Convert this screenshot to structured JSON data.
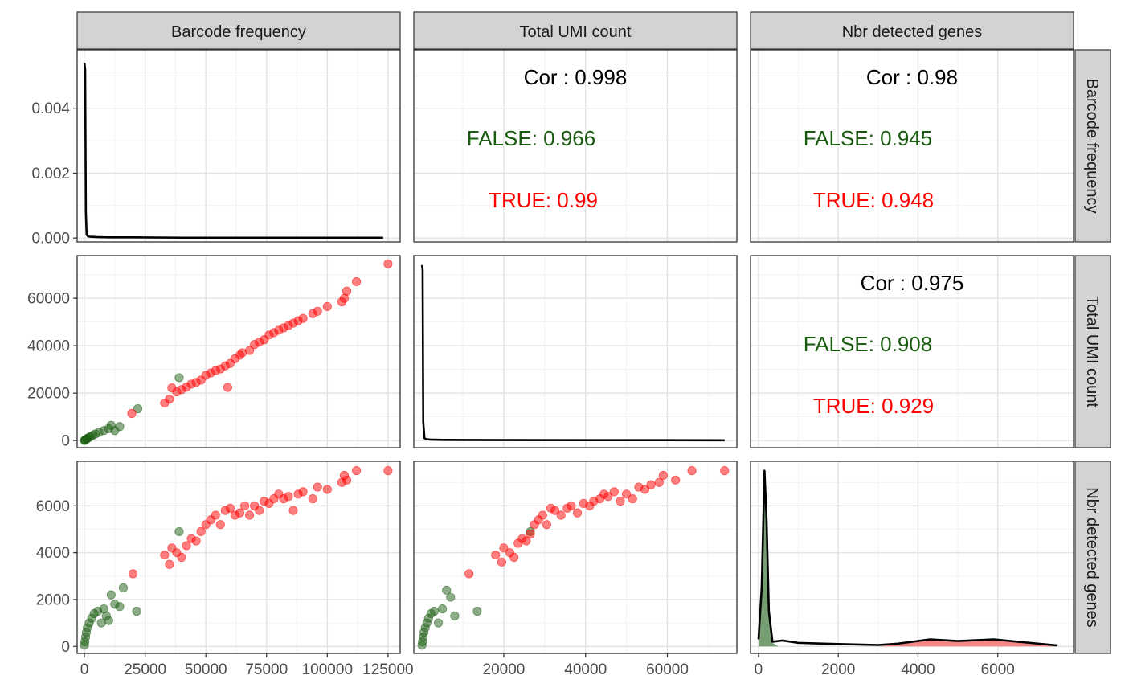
{
  "figure": {
    "variables": [
      "Barcode frequency",
      "Total UMI count",
      "Nbr detected genes"
    ],
    "colors": {
      "FALSE": "#1a5c10",
      "TRUE": "#ff0000",
      "overall": "#000000"
    }
  },
  "chart_data": {
    "type": "scatter",
    "kind": "pairs-plot matrix (3x3), lower panels scatter, diagonal density, upper panels correlation",
    "grid": true,
    "groups": [
      "FALSE",
      "TRUE"
    ],
    "axes": {
      "x": [
        {
          "ticks": [
            0,
            25000,
            50000,
            75000,
            100000,
            125000
          ],
          "tick_labels": [
            "0",
            "25000",
            "50000",
            "75000",
            "100000",
            "125000"
          ],
          "lim": [
            -3000,
            130000
          ]
        },
        {
          "ticks": [
            20000,
            40000,
            60000
          ],
          "tick_labels": [
            "20000",
            "40000",
            "60000"
          ],
          "lim": [
            -2000,
            77000
          ]
        },
        {
          "ticks": [
            0,
            2000,
            4000,
            6000
          ],
          "tick_labels": [
            "0",
            "2000",
            "4000",
            "6000"
          ],
          "lim": [
            -200,
            7900
          ]
        }
      ],
      "y": [
        {
          "ticks": [
            0,
            0.002,
            0.004
          ],
          "tick_labels": [
            "0.000",
            "0.002",
            "0.004"
          ],
          "lim": [
            -0.00012,
            0.0058
          ]
        },
        {
          "ticks": [
            0,
            20000,
            40000,
            60000
          ],
          "tick_labels": [
            "0",
            "20000",
            "40000",
            "60000"
          ],
          "lim": [
            -3000,
            78000
          ]
        },
        {
          "ticks": [
            0,
            2000,
            4000,
            6000
          ],
          "tick_labels": [
            "0",
            "2000",
            "4000",
            "6000"
          ],
          "lim": [
            -300,
            7900
          ]
        }
      ]
    },
    "correlations": [
      {
        "panel": "Total UMI count vs Barcode frequency",
        "row": 0,
        "col": 1,
        "overall": "Cor : 0.998",
        "FALSE": "FALSE: 0.966",
        "TRUE": "TRUE: 0.99"
      },
      {
        "panel": "Nbr detected genes vs Barcode frequency",
        "row": 0,
        "col": 2,
        "overall": "Cor : 0.98",
        "FALSE": "FALSE: 0.945",
        "TRUE": "TRUE: 0.948"
      },
      {
        "panel": "Nbr detected genes vs Total UMI count",
        "row": 1,
        "col": 2,
        "overall": "Cor : 0.975",
        "FALSE": "FALSE: 0.908",
        "TRUE": "TRUE: 0.929"
      }
    ],
    "densities": [
      {
        "row": 0,
        "col": 0,
        "x": [
          0,
          300,
          600,
          900,
          1500,
          2500,
          5000,
          10000,
          20000,
          40000,
          80000,
          123000
        ],
        "y": [
          0.0054,
          0.0052,
          0.0008,
          0.0001,
          5e-05,
          4e-05,
          3e-05,
          2e-05,
          2e-05,
          1e-05,
          1e-05,
          1e-05
        ]
      },
      {
        "row": 1,
        "col": 1,
        "x": [
          0,
          150,
          300,
          600,
          1000,
          2000,
          5000,
          10000,
          20000,
          40000,
          60000,
          74000
        ],
        "y": [
          74000,
          72000,
          8000,
          1000,
          600,
          400,
          300,
          250,
          200,
          150,
          150,
          100
        ]
      },
      {
        "row": 2,
        "col": 2,
        "x": [
          0,
          80,
          150,
          200,
          260,
          350,
          600,
          1000,
          2000,
          3000,
          3500,
          4300,
          5000,
          5900,
          6500,
          7500
        ],
        "y": [
          300,
          2500,
          7500,
          5500,
          1500,
          200,
          250,
          150,
          100,
          60,
          120,
          300,
          230,
          300,
          200,
          40
        ]
      }
    ],
    "density_fill": [
      {
        "group": "FALSE",
        "x": [
          0,
          80,
          150,
          200,
          260,
          350,
          500
        ],
        "y": [
          300,
          2300,
          7300,
          5200,
          1300,
          150,
          0
        ]
      },
      {
        "group": "TRUE",
        "x": [
          3000,
          3500,
          4300,
          5000,
          5900,
          6500,
          7500
        ],
        "y": [
          0,
          100,
          280,
          220,
          290,
          190,
          20
        ]
      }
    ],
    "scatter": {
      "bc_umi": {
        "FALSE": [
          [
            0,
            50
          ],
          [
            200,
            150
          ],
          [
            400,
            300
          ],
          [
            800,
            600
          ],
          [
            1200,
            900
          ],
          [
            1800,
            1300
          ],
          [
            2500,
            1700
          ],
          [
            3500,
            2200
          ],
          [
            4500,
            2800
          ],
          [
            6000,
            3400
          ],
          [
            8000,
            4200
          ],
          [
            10000,
            5000
          ],
          [
            11000,
            6400
          ],
          [
            12500,
            4200
          ],
          [
            14500,
            5900
          ],
          [
            22000,
            13400
          ],
          [
            39000,
            26500
          ]
        ],
        "TRUE": [
          [
            19500,
            11400
          ],
          [
            33000,
            15800
          ],
          [
            35000,
            17500
          ],
          [
            36000,
            22200
          ],
          [
            38000,
            20500
          ],
          [
            40000,
            21500
          ],
          [
            42000,
            22500
          ],
          [
            44000,
            23800
          ],
          [
            46000,
            24500
          ],
          [
            48000,
            25500
          ],
          [
            50000,
            27500
          ],
          [
            52000,
            28500
          ],
          [
            54000,
            29500
          ],
          [
            56000,
            30200
          ],
          [
            58000,
            31500
          ],
          [
            59000,
            22400
          ],
          [
            60000,
            32500
          ],
          [
            62000,
            34500
          ],
          [
            64000,
            36000
          ],
          [
            65000,
            37000
          ],
          [
            68000,
            38000
          ],
          [
            70000,
            40500
          ],
          [
            72000,
            41500
          ],
          [
            74000,
            42500
          ],
          [
            76000,
            44500
          ],
          [
            78000,
            45500
          ],
          [
            80000,
            46500
          ],
          [
            82000,
            47500
          ],
          [
            84000,
            48500
          ],
          [
            86000,
            49500
          ],
          [
            88000,
            50500
          ],
          [
            90000,
            51500
          ],
          [
            94000,
            53500
          ],
          [
            96000,
            54500
          ],
          [
            100000,
            56500
          ],
          [
            106000,
            58500
          ],
          [
            107000,
            60000
          ],
          [
            108000,
            63000
          ],
          [
            112000,
            67000
          ],
          [
            125000,
            74500
          ]
        ]
      },
      "bc_genes": {
        "FALSE": [
          [
            0,
            50
          ],
          [
            200,
            200
          ],
          [
            500,
            400
          ],
          [
            800,
            600
          ],
          [
            1200,
            800
          ],
          [
            2000,
            1000
          ],
          [
            3000,
            1200
          ],
          [
            4000,
            1400
          ],
          [
            5500,
            1500
          ],
          [
            7000,
            1000
          ],
          [
            8000,
            1600
          ],
          [
            9000,
            1300
          ],
          [
            10000,
            1100
          ],
          [
            11000,
            2200
          ],
          [
            12500,
            1800
          ],
          [
            14500,
            1700
          ],
          [
            16000,
            2500
          ],
          [
            21500,
            1500
          ],
          [
            39000,
            4900
          ]
        ],
        "TRUE": [
          [
            20000,
            3100
          ],
          [
            33000,
            3900
          ],
          [
            35000,
            3500
          ],
          [
            36000,
            4200
          ],
          [
            38000,
            4000
          ],
          [
            40000,
            3800
          ],
          [
            42000,
            4300
          ],
          [
            44000,
            4600
          ],
          [
            46000,
            4500
          ],
          [
            48000,
            4900
          ],
          [
            50000,
            5200
          ],
          [
            52000,
            5400
          ],
          [
            54000,
            5600
          ],
          [
            56000,
            5200
          ],
          [
            58000,
            5800
          ],
          [
            60000,
            5900
          ],
          [
            62000,
            5600
          ],
          [
            64000,
            5700
          ],
          [
            66000,
            6000
          ],
          [
            68000,
            5600
          ],
          [
            70000,
            6000
          ],
          [
            72000,
            5800
          ],
          [
            74000,
            6200
          ],
          [
            76000,
            6100
          ],
          [
            78000,
            6300
          ],
          [
            80000,
            6500
          ],
          [
            82000,
            6300
          ],
          [
            84000,
            6400
          ],
          [
            86000,
            5800
          ],
          [
            88000,
            6500
          ],
          [
            90000,
            6600
          ],
          [
            94000,
            6300
          ],
          [
            96000,
            6800
          ],
          [
            100000,
            6700
          ],
          [
            106000,
            7000
          ],
          [
            107000,
            7300
          ],
          [
            108000,
            7100
          ],
          [
            112000,
            7500
          ],
          [
            125000,
            7500
          ]
        ]
      },
      "umi_genes": {
        "FALSE": [
          [
            0,
            50
          ],
          [
            100,
            200
          ],
          [
            300,
            400
          ],
          [
            500,
            600
          ],
          [
            800,
            800
          ],
          [
            1200,
            1000
          ],
          [
            1600,
            1200
          ],
          [
            2200,
            1400
          ],
          [
            3000,
            1500
          ],
          [
            4000,
            1000
          ],
          [
            5000,
            1600
          ],
          [
            6000,
            2400
          ],
          [
            7000,
            2100
          ],
          [
            8000,
            1300
          ],
          [
            13500,
            1500
          ],
          [
            26500,
            4900
          ]
        ],
        "TRUE": [
          [
            11500,
            3100
          ],
          [
            18000,
            3900
          ],
          [
            19500,
            3600
          ],
          [
            20000,
            4200
          ],
          [
            21500,
            4000
          ],
          [
            22500,
            3800
          ],
          [
            23500,
            4400
          ],
          [
            24500,
            4600
          ],
          [
            25500,
            4500
          ],
          [
            26500,
            4800
          ],
          [
            27500,
            5200
          ],
          [
            28500,
            5400
          ],
          [
            29500,
            5600
          ],
          [
            30500,
            5200
          ],
          [
            31500,
            5900
          ],
          [
            32500,
            5800
          ],
          [
            34000,
            5600
          ],
          [
            35500,
            5900
          ],
          [
            36500,
            6000
          ],
          [
            38000,
            5700
          ],
          [
            39500,
            6100
          ],
          [
            41000,
            6000
          ],
          [
            42000,
            6200
          ],
          [
            43500,
            6300
          ],
          [
            44500,
            6500
          ],
          [
            45500,
            6400
          ],
          [
            47000,
            6600
          ],
          [
            48500,
            6200
          ],
          [
            50000,
            6500
          ],
          [
            51500,
            6300
          ],
          [
            53000,
            6800
          ],
          [
            54500,
            6700
          ],
          [
            56000,
            6900
          ],
          [
            58000,
            7000
          ],
          [
            59000,
            7300
          ],
          [
            62000,
            7100
          ],
          [
            66000,
            7500
          ],
          [
            74000,
            7500
          ]
        ]
      }
    }
  }
}
